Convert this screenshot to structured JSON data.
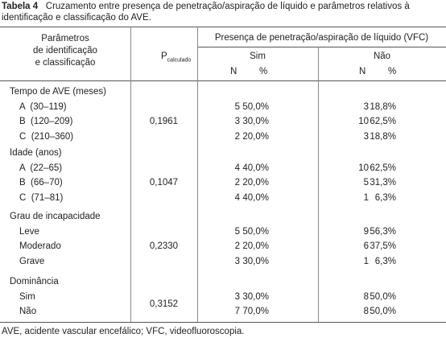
{
  "caption": {
    "label": "Tabela 4",
    "text": "Cruzamento entre presença de penetração/aspiração de líquido e parâmetros relativos à identificação e classificação do AVE."
  },
  "table": {
    "header": {
      "param": [
        "Parâmetros",
        "de identificação",
        "e classificação"
      ],
      "p": "P",
      "p_sub": "calculado",
      "group": "Presença de penetração/aspiração de líquido (VFC)",
      "sim": "Sim",
      "nao": "Não",
      "sim_n": "N",
      "sim_pct": "%",
      "nao_n": "N",
      "nao_pct": "%"
    },
    "groups": [
      {
        "title": "Tempo de AVE (meses)",
        "p": "0,1961",
        "rows": [
          [
            "A  (30–119)",
            "5",
            "50,0%",
            "3",
            "18,8%"
          ],
          [
            "B  (120–209)",
            "3",
            "30,0%",
            "10",
            "62,5%"
          ],
          [
            "C  (210–360)",
            "2",
            "20,0%",
            "3",
            "18,8%"
          ]
        ]
      },
      {
        "title": "Idade (anos)",
        "p": "0,1047",
        "rows": [
          [
            "A  (22–65)",
            "4",
            "40,0%",
            "10",
            "62,5%"
          ],
          [
            "B  (66–70)",
            "2",
            "20,0%",
            "5",
            "31,3%"
          ],
          [
            "C  (71–81)",
            "4",
            "40,0%",
            "1",
            "6,3%"
          ]
        ]
      },
      {
        "title": "Grau de incapacidade",
        "p": "0,2330",
        "rows": [
          [
            "Leve",
            "5",
            "50,0%",
            "9",
            "56,3%"
          ],
          [
            "Moderado",
            "2",
            "20,0%",
            "6",
            "37,5%"
          ],
          [
            "Grave",
            "3",
            "30,0%",
            "1",
            "6,3%"
          ]
        ]
      },
      {
        "title": "Dominância",
        "p": "0,3152",
        "rows": [
          [
            "Sim",
            "3",
            "30,0%",
            "8",
            "50,0%"
          ],
          [
            "Não",
            "7",
            "70,0%",
            "8",
            "50,0%"
          ]
        ]
      }
    ]
  },
  "footnote": "AVE, acidente vascular encefálico; VFC, videofluoroscopia."
}
